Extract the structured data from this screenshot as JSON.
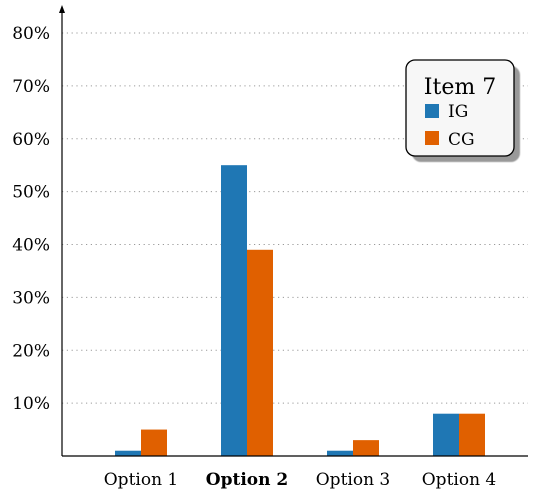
{
  "chart_data": {
    "type": "bar",
    "categories": [
      "Option 1",
      "Option 2",
      "Option 3",
      "Option 4"
    ],
    "bold_category": "Option 2",
    "series": [
      {
        "name": "IG",
        "color": "#1f77b4",
        "values": [
          1,
          55,
          1,
          8
        ]
      },
      {
        "name": "CG",
        "color": "#e06000",
        "values": [
          5,
          39,
          3,
          8
        ]
      }
    ],
    "ylim": [
      0,
      80
    ],
    "yticks": [
      10,
      20,
      30,
      40,
      50,
      60,
      70,
      80
    ],
    "ytick_labels": [
      "10%",
      "20%",
      "30%",
      "40%",
      "50%",
      "60%",
      "70%",
      "80%"
    ],
    "grid": "horizontal dotted",
    "legend": {
      "title": "Item 7",
      "placement": "top-right"
    }
  }
}
